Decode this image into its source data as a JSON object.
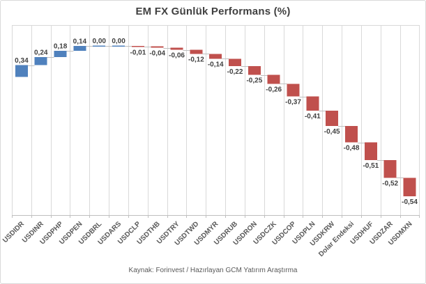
{
  "chart_data": {
    "type": "bar",
    "subtype": "waterfall",
    "title": "EM FX Günlük Performans (%)",
    "categories": [
      "USDIDR",
      "USDINR",
      "USDPHP",
      "USDPEN",
      "USDBRL",
      "USDARS",
      "USDCLP",
      "USDTHB",
      "USDTRY",
      "USDTWD",
      "USDMYR",
      "USDRUB",
      "USDRON",
      "USDCZK",
      "USDCOP",
      "USDPLN",
      "USDKRW",
      "Dolar Endeksi",
      "USDHUF",
      "USDZAR",
      "USDMXN"
    ],
    "values": [
      0.34,
      0.24,
      0.18,
      0.14,
      0.0,
      0.0,
      -0.01,
      -0.04,
      -0.06,
      -0.12,
      -0.14,
      -0.22,
      -0.25,
      -0.26,
      -0.37,
      -0.41,
      -0.45,
      -0.48,
      -0.51,
      -0.52,
      -0.54
    ],
    "value_labels": [
      "0,34",
      "0,24",
      "0,18",
      "0,14",
      "0,00",
      "0,00",
      "-0,01",
      "-0,04",
      "-0,06",
      "-0,12",
      "-0,14",
      "-0,22",
      "-0,25",
      "-0,26",
      "-0,37",
      "-0,41",
      "-0,45",
      "-0,48",
      "-0,51",
      "-0,52",
      "-0,54"
    ],
    "colors": {
      "positive": "#4F81BD",
      "negative": "#C0504D",
      "zero": "#4F81BD",
      "value_label": "#404040",
      "axis_label": "#595959"
    },
    "baseline_start": 0,
    "grid": "vertical-category-gridlines",
    "legend_position": "none",
    "xlabel": "",
    "ylabel": ""
  },
  "footer": {
    "source_text": "Kaynak: Forinvest / Hazırlayan GCM Yatırım Araştırma"
  }
}
